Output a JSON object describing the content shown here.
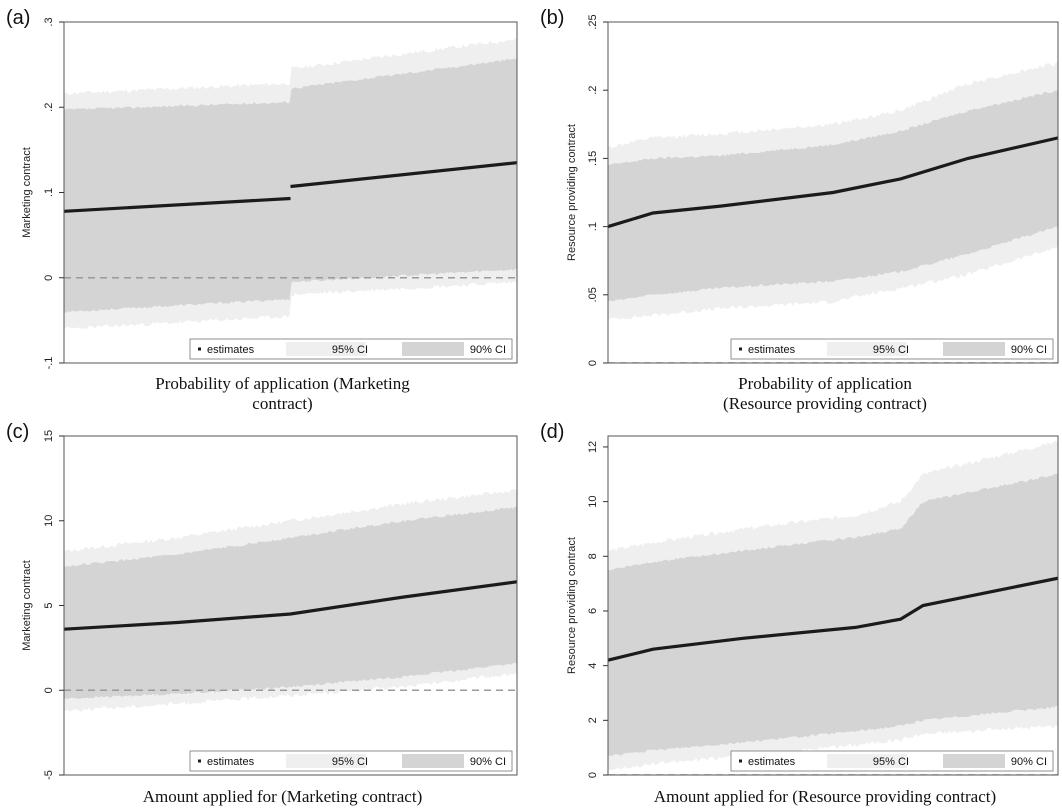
{
  "legend": {
    "estimates": "estimates",
    "ci95": "95% CI",
    "ci90": "90% CI"
  },
  "colors": {
    "ci95": "#efefef",
    "ci90": "#d4d4d4",
    "estimate": "#1b1b1b",
    "zero_line": "#9a9a9a",
    "frame": "#555555"
  },
  "chart_data": [
    {
      "panel_label": "(a)",
      "type": "line",
      "ylabel": "Marketing contract",
      "caption": [
        "Probability of application (Marketing",
        "contract)"
      ],
      "yticks": [
        -0.1,
        0,
        0.1,
        0.2,
        0.3
      ],
      "ytick_labels": [
        "-.1",
        "0",
        ".1",
        ".2",
        ".3"
      ],
      "ylim": [
        -0.1,
        0.3
      ],
      "zero_line": 0,
      "legend_position": "bottom-right",
      "x_index": [
        0,
        0.5,
        0.5,
        1
      ],
      "estimate": [
        0.078,
        0.093,
        0.107,
        0.135
      ],
      "ci90_low": [
        -0.04,
        -0.025,
        -0.005,
        0.01
      ],
      "ci90_high": [
        0.197,
        0.206,
        0.222,
        0.257
      ],
      "ci95_low": [
        -0.06,
        -0.045,
        -0.02,
        -0.005
      ],
      "ci95_high": [
        0.216,
        0.228,
        0.245,
        0.28
      ]
    },
    {
      "panel_label": "(b)",
      "type": "line",
      "ylabel": "Resource providing contract",
      "caption": [
        "Probability of application",
        "(Resource providing contract)"
      ],
      "yticks": [
        0,
        0.05,
        0.1,
        0.15,
        0.2,
        0.25
      ],
      "ytick_labels": [
        "0",
        ".05",
        ".1",
        ".15",
        ".2",
        ".25"
      ],
      "ylim": [
        0,
        0.25
      ],
      "zero_line": 0,
      "legend_position": "bottom-right",
      "x_index": [
        0,
        0.1,
        0.25,
        0.5,
        0.65,
        0.8,
        1
      ],
      "estimate": [
        0.1,
        0.11,
        0.115,
        0.125,
        0.135,
        0.15,
        0.165
      ],
      "ci90_low": [
        0.045,
        0.05,
        0.055,
        0.06,
        0.067,
        0.08,
        0.1
      ],
      "ci90_high": [
        0.145,
        0.15,
        0.152,
        0.16,
        0.17,
        0.185,
        0.2
      ],
      "ci95_low": [
        0.032,
        0.035,
        0.04,
        0.045,
        0.055,
        0.065,
        0.085
      ],
      "ci95_high": [
        0.158,
        0.165,
        0.168,
        0.175,
        0.185,
        0.205,
        0.22
      ]
    },
    {
      "panel_label": "(c)",
      "type": "line",
      "ylabel": "Marketing contract",
      "caption": [
        "Amount applied for (Marketing contract)"
      ],
      "yticks": [
        -5,
        0,
        5,
        10,
        15
      ],
      "ytick_labels": [
        "-5",
        "0",
        "5",
        "10",
        "15"
      ],
      "ylim": [
        -5,
        15
      ],
      "zero_line": 0,
      "legend_position": "bottom-right",
      "x_index": [
        0,
        0.25,
        0.5,
        0.75,
        1
      ],
      "estimate": [
        3.6,
        4.0,
        4.5,
        5.5,
        6.4
      ],
      "ci90_low": [
        -0.5,
        -0.2,
        0.2,
        0.8,
        1.6
      ],
      "ci90_high": [
        7.3,
        8.0,
        9.0,
        10.0,
        10.8
      ],
      "ci95_low": [
        -1.2,
        -0.8,
        -0.3,
        0.2,
        1.0
      ],
      "ci95_high": [
        8.2,
        9.0,
        10.0,
        11.0,
        11.8
      ]
    },
    {
      "panel_label": "(d)",
      "type": "line",
      "ylabel": "Resource providing contract",
      "caption": [
        "Amount applied for (Resource providing contract)"
      ],
      "yticks": [
        0,
        2,
        4,
        6,
        8,
        10,
        12
      ],
      "ytick_labels": [
        "0",
        "2",
        "4",
        "6",
        "8",
        "10",
        "12"
      ],
      "ylim": [
        0,
        12.4
      ],
      "zero_line": 0,
      "legend_position": "bottom-right",
      "x_index": [
        0,
        0.1,
        0.3,
        0.55,
        0.65,
        0.7,
        1
      ],
      "estimate": [
        4.2,
        4.6,
        5.0,
        5.4,
        5.7,
        6.2,
        7.2
      ],
      "ci90_low": [
        0.7,
        0.9,
        1.2,
        1.6,
        1.8,
        2.0,
        2.5
      ],
      "ci90_high": [
        7.5,
        7.8,
        8.2,
        8.7,
        9.0,
        10.0,
        11.0
      ],
      "ci95_low": [
        0.2,
        0.4,
        0.7,
        1.1,
        1.3,
        1.5,
        1.8
      ],
      "ci95_high": [
        8.2,
        8.5,
        9.0,
        9.5,
        10.0,
        11.0,
        12.2
      ]
    }
  ]
}
